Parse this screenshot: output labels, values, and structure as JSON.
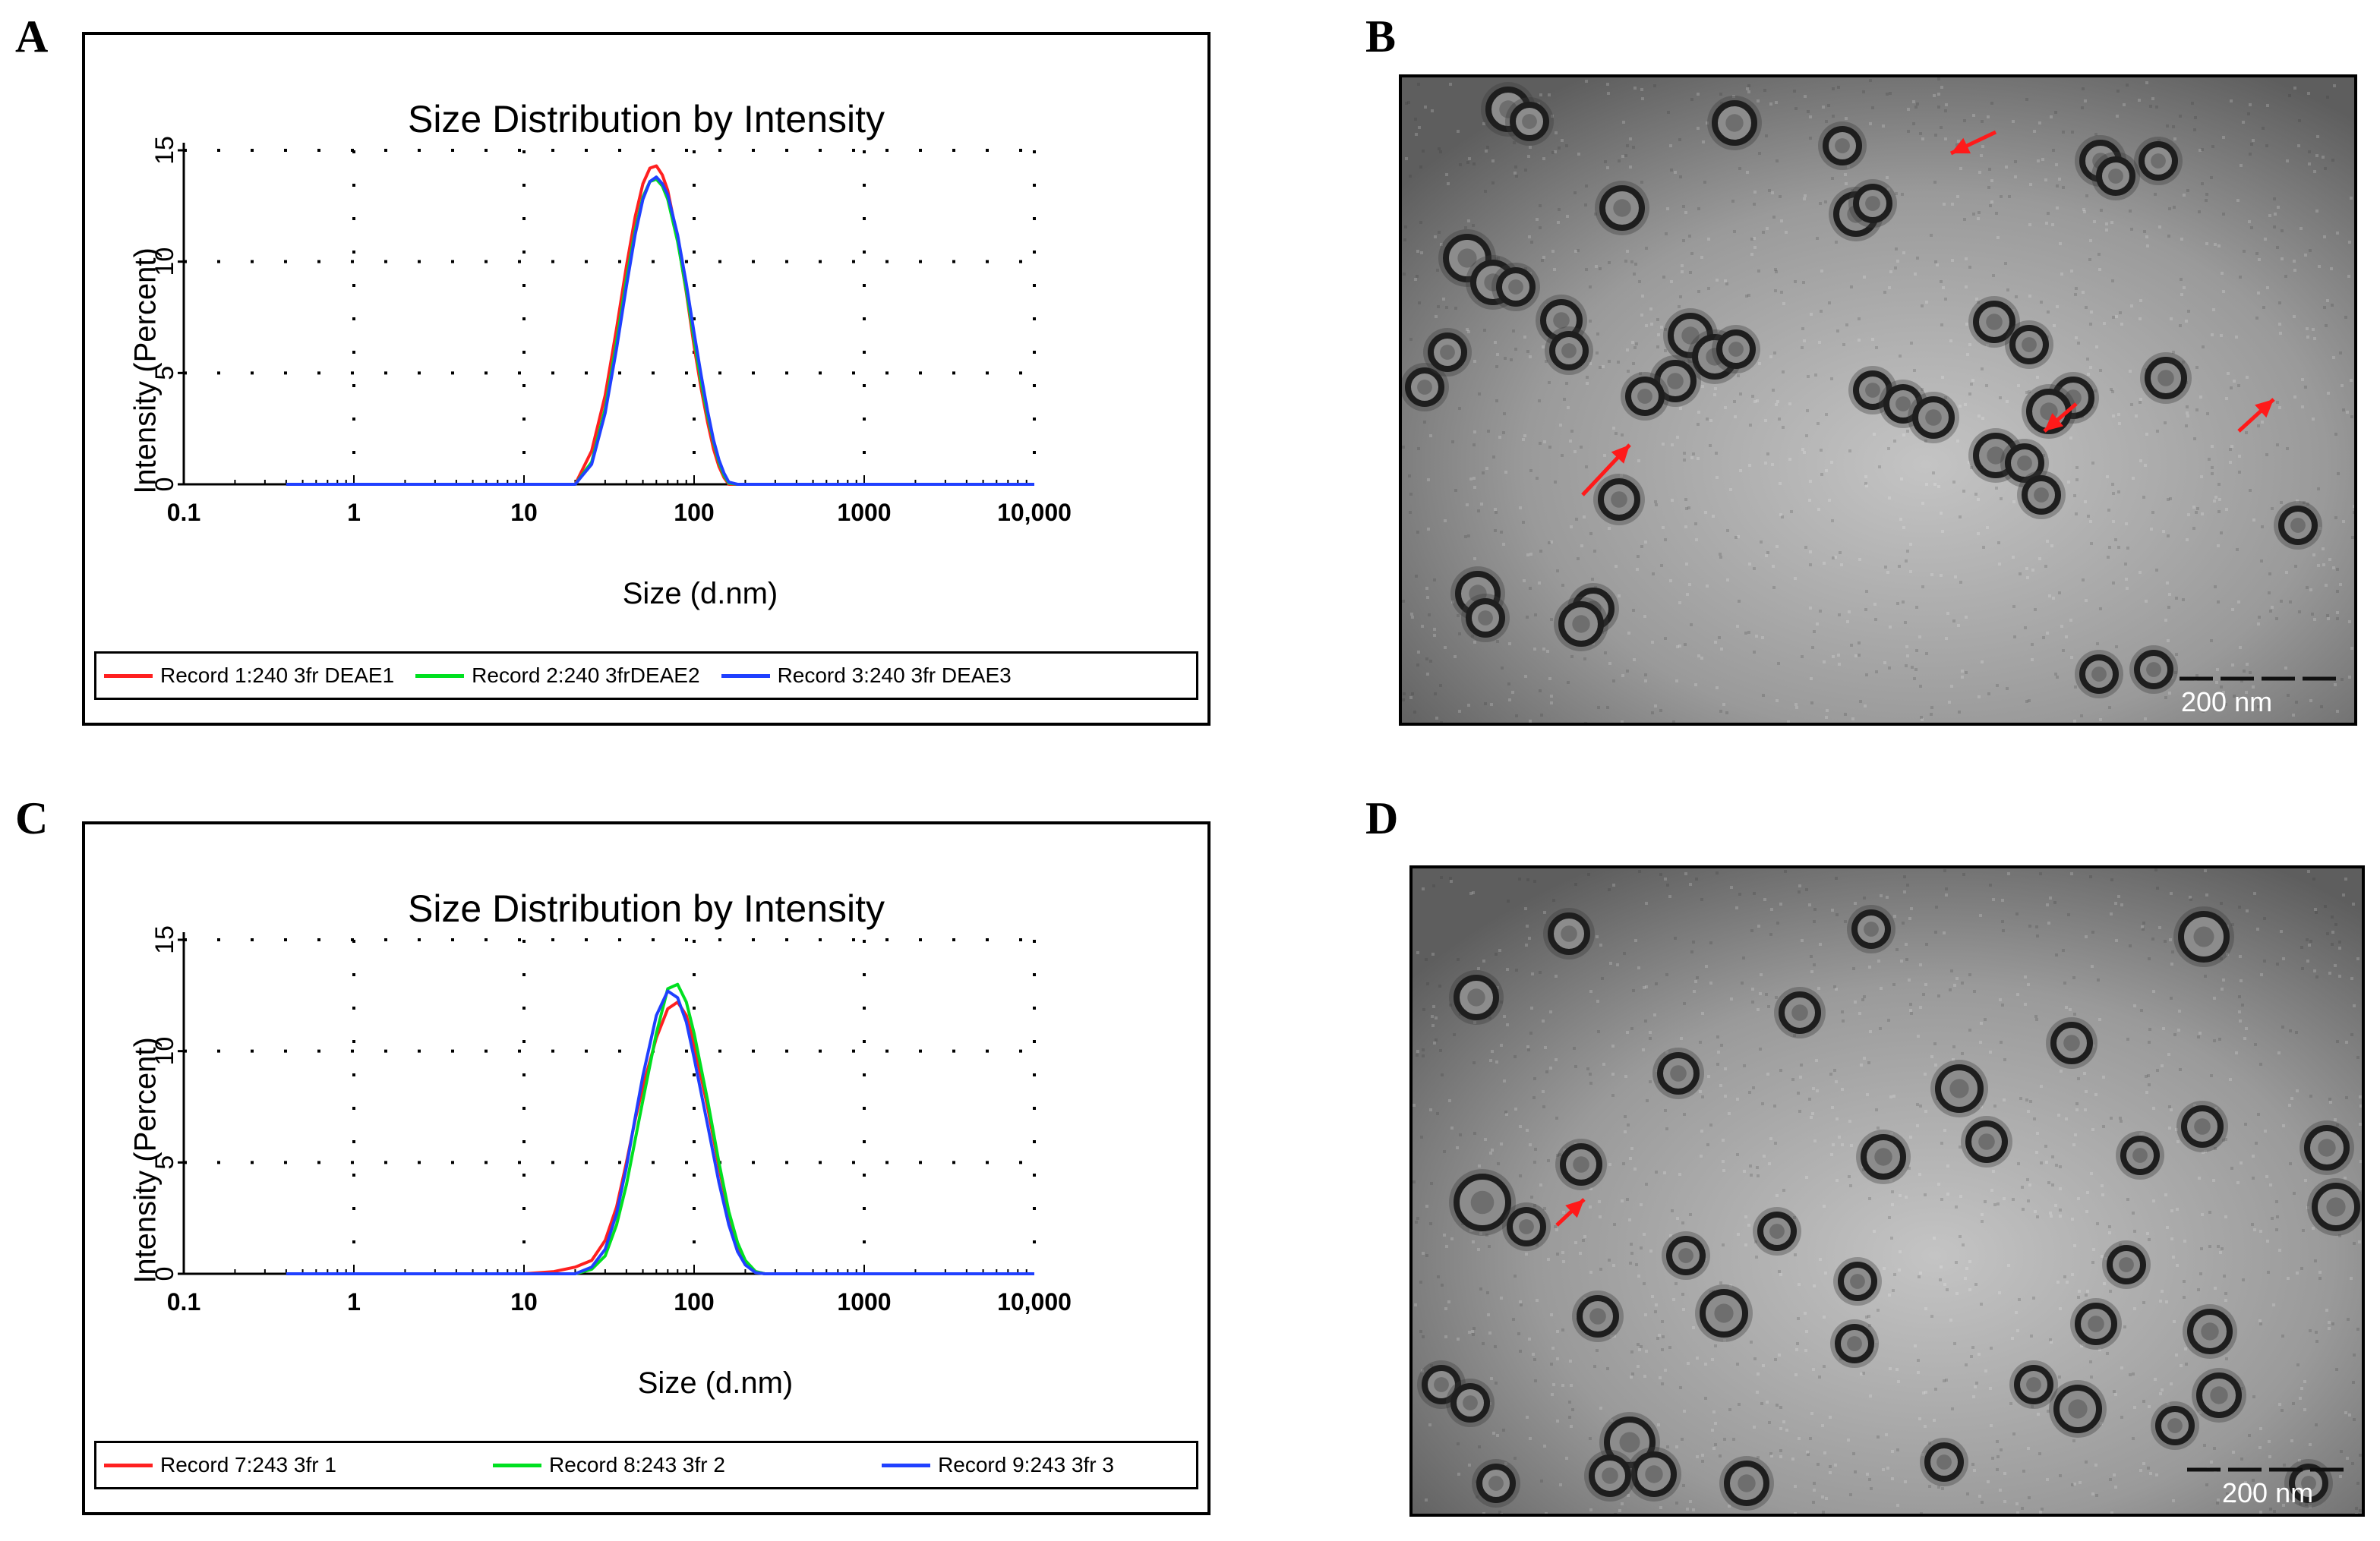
{
  "panels": {
    "A": "A",
    "B": "B",
    "C": "C",
    "D": "D"
  },
  "chart_data": [
    {
      "type": "line",
      "panel": "A",
      "title": "Size Distribution by Intensity",
      "xlabel": "Size (d.nm)",
      "ylabel": "Intensity (Percent)",
      "xscale": "log",
      "xlim": [
        0.1,
        10000
      ],
      "ylim": [
        0,
        15
      ],
      "x_ticks": [
        "0.1",
        "1",
        "10",
        "100",
        "1000",
        "10,000"
      ],
      "y_ticks": [
        "0",
        "5",
        "10",
        "15"
      ],
      "grid": true,
      "legend_position": "bottom",
      "series": [
        {
          "name": "Record 1:240 3fr DEAE1",
          "color": "#ff2020",
          "x": [
            0.4,
            10,
            20,
            25,
            30,
            35,
            40,
            45,
            50,
            55,
            60,
            65,
            70,
            80,
            90,
            100,
            110,
            120,
            130,
            140,
            150,
            160,
            180,
            1000,
            10000
          ],
          "y": [
            0,
            0,
            0,
            1.5,
            4.0,
            7.0,
            9.8,
            12.0,
            13.5,
            14.2,
            14.3,
            13.9,
            13.2,
            11.0,
            8.6,
            6.2,
            4.3,
            2.8,
            1.6,
            0.8,
            0.3,
            0,
            0,
            0,
            0
          ]
        },
        {
          "name": "Record 2:240 3frDEAE2",
          "color": "#00e020",
          "x": [
            0.4,
            10,
            20,
            25,
            30,
            35,
            40,
            45,
            50,
            55,
            60,
            65,
            70,
            80,
            90,
            100,
            110,
            120,
            130,
            140,
            150,
            160,
            180,
            1000,
            10000
          ],
          "y": [
            0,
            0,
            0,
            1.0,
            3.4,
            6.4,
            9.2,
            11.4,
            12.9,
            13.6,
            13.7,
            13.4,
            12.8,
            10.9,
            8.7,
            6.5,
            4.6,
            3.1,
            1.9,
            1.0,
            0.4,
            0.05,
            0,
            0,
            0
          ]
        },
        {
          "name": "Record 3:240 3fr DEAE3",
          "color": "#2040ff",
          "x": [
            0.4,
            10,
            20,
            25,
            30,
            35,
            40,
            45,
            50,
            55,
            60,
            65,
            70,
            80,
            90,
            100,
            110,
            120,
            130,
            140,
            150,
            160,
            180,
            1000,
            10000
          ],
          "y": [
            0,
            0,
            0,
            0.9,
            3.2,
            6.1,
            8.9,
            11.2,
            12.8,
            13.6,
            13.8,
            13.5,
            13.0,
            11.2,
            9.0,
            6.8,
            4.9,
            3.3,
            2.0,
            1.1,
            0.5,
            0.1,
            0,
            0,
            0
          ]
        }
      ]
    },
    {
      "type": "line",
      "panel": "C",
      "title": "Size Distribution by Intensity",
      "xlabel": "Size (d.nm)",
      "ylabel": "Intensity (Percent)",
      "xscale": "log",
      "xlim": [
        0.1,
        10000
      ],
      "ylim": [
        0,
        15
      ],
      "x_ticks": [
        "0.1",
        "1",
        "10",
        "100",
        "1000",
        "10,000"
      ],
      "y_ticks": [
        "0",
        "5",
        "10",
        "15"
      ],
      "grid": true,
      "legend_position": "bottom",
      "series": [
        {
          "name": "Record 7:243 3fr 1",
          "color": "#ff2020",
          "x": [
            0.4,
            10,
            15,
            20,
            25,
            30,
            35,
            40,
            45,
            50,
            60,
            70,
            80,
            90,
            100,
            120,
            140,
            160,
            180,
            200,
            230,
            260,
            1000,
            10000
          ],
          "y": [
            0,
            0,
            0.1,
            0.3,
            0.6,
            1.5,
            3.0,
            5.0,
            6.9,
            8.4,
            10.6,
            11.9,
            12.2,
            11.6,
            10.3,
            7.5,
            4.8,
            2.7,
            1.3,
            0.5,
            0.1,
            0,
            0,
            0
          ]
        },
        {
          "name": "Record 8:243 3fr 2",
          "color": "#00e020",
          "x": [
            0.4,
            10,
            15,
            20,
            25,
            30,
            35,
            40,
            45,
            50,
            60,
            70,
            80,
            90,
            100,
            120,
            140,
            160,
            180,
            200,
            230,
            260,
            1000,
            10000
          ],
          "y": [
            0,
            0,
            0,
            0,
            0.2,
            0.8,
            2.2,
            4.0,
            6.0,
            7.8,
            10.8,
            12.8,
            13.0,
            12.2,
            10.8,
            7.8,
            5.0,
            2.8,
            1.4,
            0.6,
            0.1,
            0,
            0,
            0
          ]
        },
        {
          "name": "Record 9:243 3fr 3",
          "color": "#2040ff",
          "x": [
            0.4,
            10,
            15,
            20,
            25,
            30,
            35,
            40,
            45,
            50,
            60,
            70,
            80,
            90,
            100,
            120,
            140,
            160,
            180,
            200,
            230,
            260,
            1000,
            10000
          ],
          "y": [
            0,
            0,
            0,
            0,
            0.3,
            1.1,
            2.7,
            4.8,
            7.0,
            8.9,
            11.6,
            12.7,
            12.4,
            11.3,
            9.7,
            6.7,
            4.1,
            2.2,
            1.0,
            0.4,
            0.05,
            0,
            0,
            0
          ]
        }
      ]
    }
  ],
  "tem": {
    "B_scale": "200 nm",
    "D_scale": "200 nm"
  },
  "colors": {
    "arrow": "#ff1a1a",
    "tem_bg": "#8a8a8a"
  }
}
